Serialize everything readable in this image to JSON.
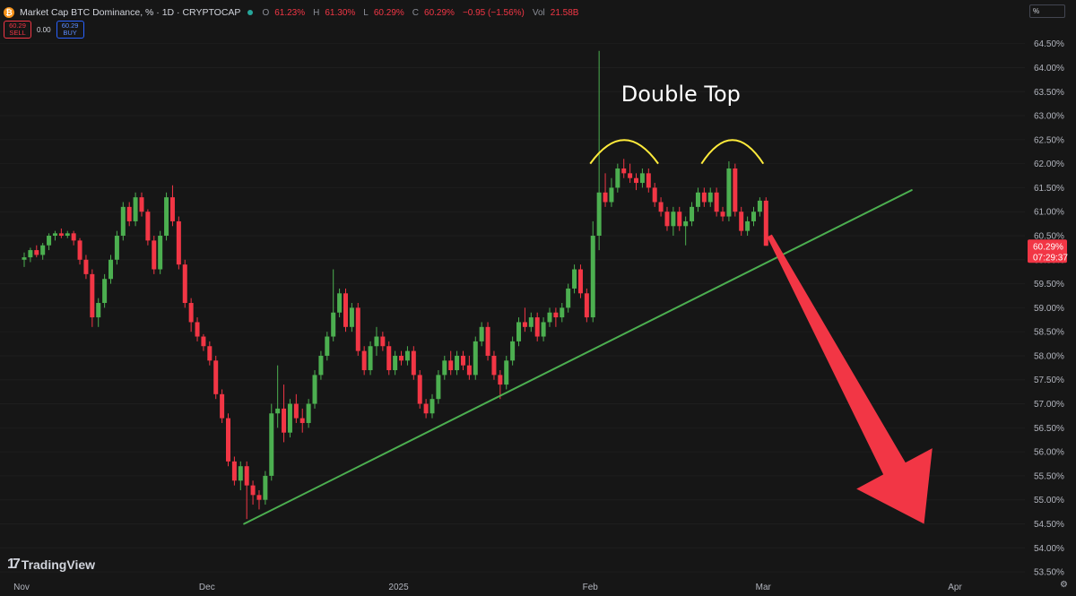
{
  "header": {
    "symbol_icon": "bitcoin-icon",
    "title": "Market Cap BTC Dominance, % · 1D · CRYPTOCAP",
    "ohlc": [
      {
        "key": "O",
        "value": "61.23%"
      },
      {
        "key": "H",
        "value": "61.30%"
      },
      {
        "key": "L",
        "value": "60.29%"
      },
      {
        "key": "C",
        "value": "60.29%"
      }
    ],
    "change": "−0.95 (−1.56%)",
    "volume_key": "Vol",
    "volume_value": "21.58B"
  },
  "trade": {
    "sell_price": "60.29",
    "sell_label": "SELL",
    "spread": "0.00",
    "buy_price": "60.29",
    "buy_label": "BUY"
  },
  "scale_unit": "%",
  "logo_text": "TradingView",
  "colors": {
    "background": "#161616",
    "up": "#26a69a",
    "up_candle": "#4caf50",
    "down": "#f23645",
    "trendline": "#4caf50",
    "arc": "#ffeb3b",
    "arrow": "#f23645",
    "axis_text": "#b2b5be"
  },
  "chart_data": {
    "type": "candlestick",
    "y_unit": "%",
    "ylim": [
      53.4,
      64.55
    ],
    "y_ticks": [
      "53.50%",
      "54.00%",
      "54.50%",
      "55.00%",
      "55.50%",
      "56.00%",
      "56.50%",
      "57.00%",
      "57.50%",
      "58.00%",
      "58.50%",
      "59.00%",
      "59.50%",
      "60.00%",
      "60.50%",
      "61.00%",
      "61.50%",
      "62.00%",
      "62.50%",
      "63.00%",
      "63.50%",
      "64.00%",
      "64.50%"
    ],
    "x_ticks": [
      {
        "label": "Nov",
        "date": "2024-11-01"
      },
      {
        "label": "Dec",
        "date": "2024-12-01"
      },
      {
        "label": "2025",
        "date": "2025-01-01"
      },
      {
        "label": "Feb",
        "date": "2025-02-01"
      },
      {
        "label": "Mar",
        "date": "2025-03-01"
      },
      {
        "label": "Apr",
        "date": "2025-04-01"
      }
    ],
    "x_range": [
      "2024-11-01",
      "2025-04-01"
    ],
    "candles_start": "2024-11-01",
    "candles": [
      [
        60.0,
        60.15,
        59.85,
        60.05
      ],
      [
        60.05,
        60.25,
        59.95,
        60.2
      ],
      [
        60.2,
        60.3,
        60.05,
        60.1
      ],
      [
        60.1,
        60.35,
        60.0,
        60.3
      ],
      [
        60.3,
        60.55,
        60.2,
        60.5
      ],
      [
        60.5,
        60.6,
        60.4,
        60.55
      ],
      [
        60.55,
        60.65,
        60.45,
        60.5
      ],
      [
        60.5,
        60.6,
        60.45,
        60.55
      ],
      [
        60.55,
        60.6,
        60.3,
        60.4
      ],
      [
        60.4,
        60.45,
        59.9,
        60.0
      ],
      [
        60.0,
        60.1,
        59.6,
        59.7
      ],
      [
        59.7,
        59.8,
        58.6,
        58.8
      ],
      [
        58.8,
        59.2,
        58.6,
        59.1
      ],
      [
        59.1,
        59.7,
        59.0,
        59.6
      ],
      [
        59.6,
        60.1,
        59.5,
        60.0
      ],
      [
        60.0,
        60.6,
        59.9,
        60.5
      ],
      [
        60.5,
        61.2,
        60.4,
        61.1
      ],
      [
        61.1,
        61.2,
        60.7,
        60.8
      ],
      [
        60.8,
        61.4,
        60.7,
        61.3
      ],
      [
        61.3,
        61.4,
        60.9,
        61.0
      ],
      [
        61.0,
        61.05,
        60.3,
        60.4
      ],
      [
        60.4,
        60.5,
        59.7,
        59.8
      ],
      [
        59.8,
        60.6,
        59.7,
        60.5
      ],
      [
        60.5,
        61.4,
        60.4,
        61.3
      ],
      [
        61.3,
        61.55,
        60.7,
        60.8
      ],
      [
        60.8,
        60.9,
        59.8,
        59.9
      ],
      [
        59.9,
        60.0,
        59.0,
        59.1
      ],
      [
        59.1,
        59.2,
        58.5,
        58.7
      ],
      [
        58.7,
        58.8,
        58.3,
        58.4
      ],
      [
        58.4,
        58.45,
        58.1,
        58.2
      ],
      [
        58.2,
        58.3,
        57.8,
        57.9
      ],
      [
        57.9,
        58.0,
        57.1,
        57.2
      ],
      [
        57.2,
        57.3,
        56.6,
        56.7
      ],
      [
        56.7,
        56.8,
        55.7,
        55.8
      ],
      [
        55.8,
        55.9,
        55.3,
        55.4
      ],
      [
        55.4,
        55.8,
        55.2,
        55.7
      ],
      [
        55.7,
        55.8,
        54.6,
        55.3
      ],
      [
        55.3,
        55.4,
        54.9,
        55.1
      ],
      [
        55.1,
        55.2,
        54.8,
        55.0
      ],
      [
        55.0,
        55.6,
        54.9,
        55.5
      ],
      [
        55.5,
        57.0,
        55.4,
        56.8
      ],
      [
        56.8,
        57.8,
        56.5,
        56.9
      ],
      [
        56.9,
        57.4,
        56.2,
        56.4
      ],
      [
        56.4,
        57.1,
        56.3,
        57.0
      ],
      [
        57.0,
        57.2,
        56.6,
        56.7
      ],
      [
        56.7,
        56.9,
        56.4,
        56.6
      ],
      [
        56.6,
        57.1,
        56.5,
        57.0
      ],
      [
        57.0,
        57.7,
        56.9,
        57.6
      ],
      [
        57.6,
        58.1,
        57.5,
        58.0
      ],
      [
        58.0,
        58.5,
        57.9,
        58.4
      ],
      [
        58.4,
        59.8,
        58.3,
        58.9
      ],
      [
        58.9,
        59.4,
        58.8,
        59.3
      ],
      [
        59.3,
        59.4,
        58.5,
        58.6
      ],
      [
        58.6,
        59.1,
        58.5,
        59.0
      ],
      [
        59.0,
        59.1,
        58.0,
        58.1
      ],
      [
        58.1,
        58.2,
        57.6,
        57.7
      ],
      [
        57.7,
        58.3,
        57.6,
        58.2
      ],
      [
        58.2,
        58.6,
        58.0,
        58.4
      ],
      [
        58.4,
        58.5,
        58.1,
        58.2
      ],
      [
        58.2,
        58.3,
        57.6,
        57.7
      ],
      [
        57.7,
        58.1,
        57.6,
        58.0
      ],
      [
        58.0,
        58.1,
        57.8,
        57.9
      ],
      [
        57.9,
        58.2,
        57.8,
        58.1
      ],
      [
        58.1,
        58.2,
        57.5,
        57.6
      ],
      [
        57.6,
        57.7,
        56.9,
        57.0
      ],
      [
        57.0,
        57.1,
        56.7,
        56.8
      ],
      [
        56.8,
        57.2,
        56.7,
        57.1
      ],
      [
        57.1,
        57.7,
        57.0,
        57.6
      ],
      [
        57.6,
        58.0,
        57.5,
        57.9
      ],
      [
        57.9,
        58.1,
        57.6,
        57.7
      ],
      [
        57.7,
        58.1,
        57.6,
        58.0
      ],
      [
        58.0,
        58.1,
        57.7,
        57.8
      ],
      [
        57.8,
        58.0,
        57.5,
        57.6
      ],
      [
        57.6,
        58.4,
        57.5,
        58.3
      ],
      [
        58.3,
        58.7,
        58.2,
        58.6
      ],
      [
        58.6,
        58.7,
        57.9,
        58.0
      ],
      [
        58.0,
        58.1,
        57.5,
        57.6
      ],
      [
        57.6,
        57.7,
        57.1,
        57.4
      ],
      [
        57.4,
        58.0,
        57.3,
        57.9
      ],
      [
        57.9,
        58.4,
        57.8,
        58.3
      ],
      [
        58.3,
        58.8,
        58.2,
        58.7
      ],
      [
        58.7,
        59.0,
        58.5,
        58.6
      ],
      [
        58.6,
        58.9,
        58.5,
        58.8
      ],
      [
        58.8,
        58.9,
        58.3,
        58.4
      ],
      [
        58.4,
        58.8,
        58.3,
        58.7
      ],
      [
        58.7,
        59.0,
        58.6,
        58.9
      ],
      [
        58.9,
        59.0,
        58.6,
        58.8
      ],
      [
        58.8,
        59.1,
        58.7,
        59.0
      ],
      [
        59.0,
        59.5,
        58.9,
        59.4
      ],
      [
        59.4,
        59.9,
        59.3,
        59.8
      ],
      [
        59.8,
        59.9,
        59.2,
        59.3
      ],
      [
        59.3,
        59.4,
        58.7,
        58.8
      ],
      [
        58.8,
        60.8,
        58.7,
        60.5
      ],
      [
        60.5,
        64.35,
        60.2,
        61.4
      ],
      [
        61.4,
        61.8,
        61.1,
        61.2
      ],
      [
        61.2,
        61.7,
        61.1,
        61.5
      ],
      [
        61.5,
        62.0,
        61.4,
        61.9
      ],
      [
        61.9,
        62.1,
        61.7,
        61.8
      ],
      [
        61.8,
        62.0,
        61.6,
        61.7
      ],
      [
        61.7,
        61.8,
        61.45,
        61.6
      ],
      [
        61.6,
        61.9,
        61.5,
        61.8
      ],
      [
        61.8,
        61.9,
        61.4,
        61.5
      ],
      [
        61.5,
        61.6,
        61.1,
        61.2
      ],
      [
        61.2,
        61.3,
        60.9,
        61.0
      ],
      [
        61.0,
        61.1,
        60.6,
        60.7
      ],
      [
        60.7,
        61.1,
        60.5,
        61.0
      ],
      [
        61.0,
        61.1,
        60.6,
        60.7
      ],
      [
        60.7,
        60.9,
        60.3,
        60.8
      ],
      [
        60.8,
        61.2,
        60.7,
        61.1
      ],
      [
        61.1,
        61.5,
        61.0,
        61.4
      ],
      [
        61.4,
        61.5,
        61.1,
        61.2
      ],
      [
        61.2,
        61.5,
        61.1,
        61.4
      ],
      [
        61.4,
        61.5,
        60.9,
        61.0
      ],
      [
        61.0,
        61.1,
        60.8,
        60.9
      ],
      [
        60.9,
        62.05,
        60.8,
        61.9
      ],
      [
        61.9,
        62.0,
        60.9,
        61.0
      ],
      [
        61.0,
        61.1,
        60.5,
        60.6
      ],
      [
        60.6,
        60.9,
        60.5,
        60.8
      ],
      [
        60.8,
        61.1,
        60.7,
        61.0
      ],
      [
        61.0,
        61.3,
        60.9,
        61.23
      ],
      [
        61.23,
        61.3,
        60.29,
        60.29
      ]
    ],
    "trendline": [
      {
        "date": "2024-12-07",
        "value": 54.5
      },
      {
        "date": "2025-03-25",
        "value": 61.45
      }
    ],
    "last_price_label": "60.29%",
    "countdown_label": "07:29:37",
    "annotations": [
      {
        "type": "text",
        "text": "Double Top",
        "date": "2025-02-06",
        "value": 63.3
      },
      {
        "type": "arc",
        "from_date": "2025-02-01",
        "to_date": "2025-02-12",
        "value": 62.5,
        "peak": 62.0
      },
      {
        "type": "arc",
        "from_date": "2025-02-19",
        "to_date": "2025-03-01",
        "value": 62.5,
        "peak": 62.0
      },
      {
        "type": "arrow",
        "from_date": "2025-03-02",
        "from_value": 60.5,
        "to_date": "2025-03-27",
        "to_value": 54.5
      }
    ]
  }
}
